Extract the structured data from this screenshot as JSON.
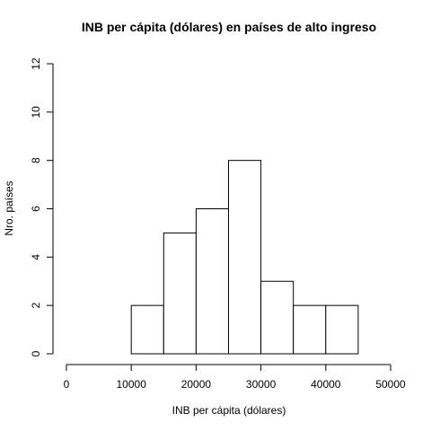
{
  "chart_data": {
    "type": "bar",
    "title": "INB per cápita (dólares) en países de alto ingreso",
    "xlabel": "INB per cápita (dólares)",
    "ylabel": "Nro. países",
    "bins": [
      {
        "from": 10000,
        "to": 15000,
        "count": 2
      },
      {
        "from": 15000,
        "to": 20000,
        "count": 5
      },
      {
        "from": 20000,
        "to": 25000,
        "count": 6
      },
      {
        "from": 25000,
        "to": 30000,
        "count": 8
      },
      {
        "from": 30000,
        "to": 35000,
        "count": 3
      },
      {
        "from": 35000,
        "to": 40000,
        "count": 2
      },
      {
        "from": 40000,
        "to": 45000,
        "count": 2
      }
    ],
    "xlim": [
      0,
      50000
    ],
    "ylim": [
      0,
      12
    ],
    "x_ticks": [
      "0",
      "10000",
      "20000",
      "30000",
      "40000",
      "50000"
    ],
    "y_ticks": [
      "0",
      "2",
      "4",
      "6",
      "8",
      "10",
      "12"
    ],
    "grid": false,
    "bar_color": "#ffffff",
    "edge_color": "#000000"
  }
}
